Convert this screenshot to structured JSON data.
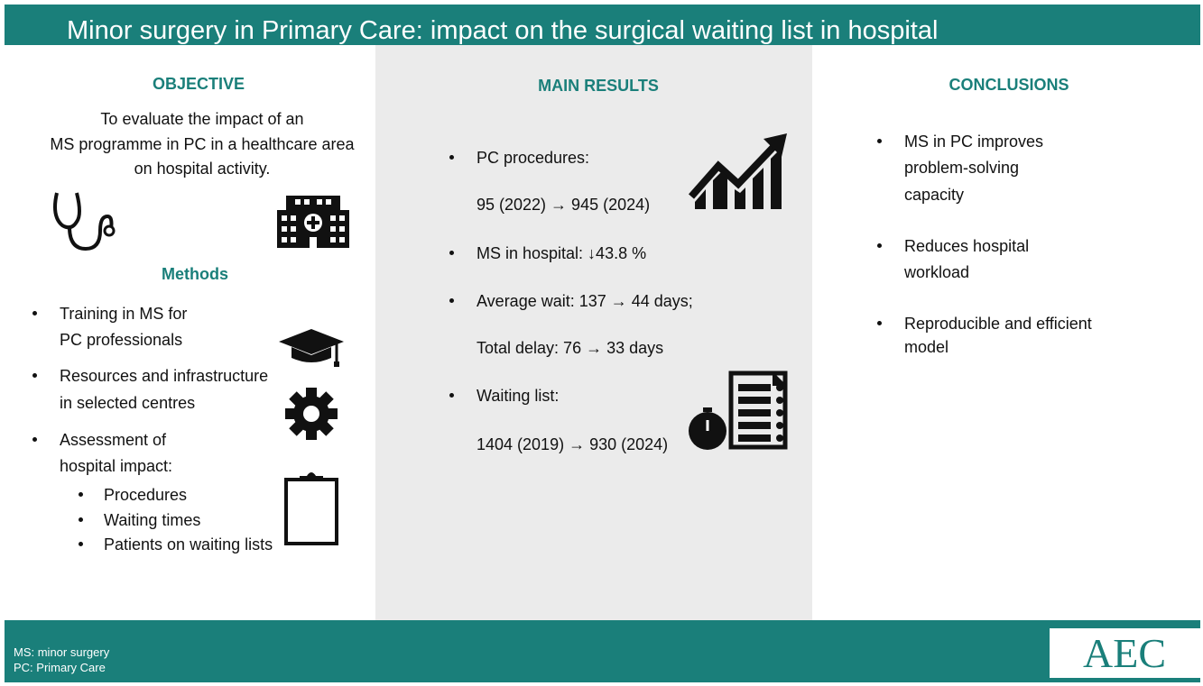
{
  "header": {
    "title": "Minor surgery in Primary Care: impact on the surgical waiting list in hospital"
  },
  "objective": {
    "heading": "OBJECTIVE",
    "lines": [
      "To evaluate the impact of an",
      "MS programme in PC in a healthcare area",
      "on hospital activity."
    ]
  },
  "methods": {
    "heading": "Methods",
    "items": [
      {
        "lines": [
          "Training  in  MS  for",
          "PC professionals"
        ]
      },
      {
        "lines": [
          "Resources and infrastructure",
          "in selected centres"
        ]
      },
      {
        "lines": [
          "Assessment of",
          "hospital impact:"
        ],
        "subitems": [
          "Procedures",
          "Waiting times",
          "Patients on waiting lists"
        ]
      }
    ]
  },
  "results": {
    "heading": "MAIN RESULTS",
    "items": [
      {
        "lines": [
          "PC procedures:",
          "95 (2022) → 945 (2024)"
        ]
      },
      {
        "lines": [
          "MS in hospital: ↓43.8 %"
        ]
      },
      {
        "lines": [
          "Average wait: 137 → 44 days;",
          "Total delay: 76 → 33 days"
        ]
      },
      {
        "lines": [
          "Waiting list:",
          "1404 (2019) → 930 (2024)"
        ]
      }
    ]
  },
  "conclusions": {
    "heading": "CONCLUSIONS",
    "items": [
      {
        "lines": [
          "MS in PC improves",
          "problem-solving",
          "capacity"
        ]
      },
      {
        "lines": [
          "Reduces hospital",
          "workload"
        ]
      },
      {
        "lines": [
          "Reproducible and efficient",
          "model"
        ]
      }
    ]
  },
  "footer": {
    "notes": [
      "MS: minor surgery",
      "PC: Primary Care"
    ],
    "logo": "AEC"
  }
}
